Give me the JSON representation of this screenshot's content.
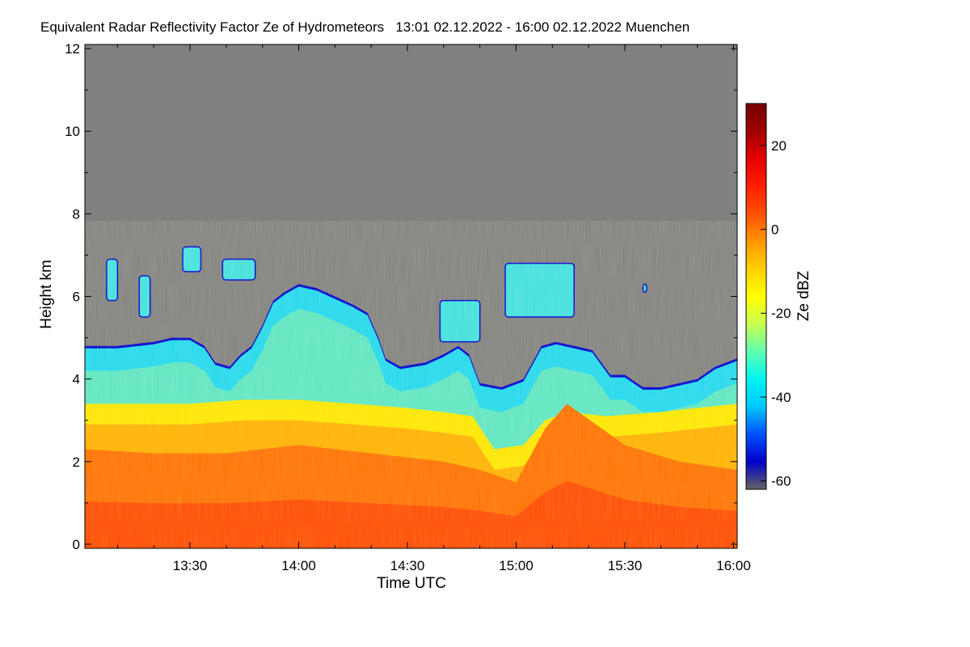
{
  "chart_data": {
    "type": "heatmap",
    "title": "Equivalent Radar Reflectivity Factor Ze of Hydrometeors   13:01 02.12.2022 - 16:00 02.12.2022 Muenchen",
    "xlabel": "Time UTC",
    "ylabel": "Height km",
    "x_ticks": [
      "13:30",
      "14:00",
      "14:30",
      "15:00",
      "15:30",
      "16:00"
    ],
    "x_tick_minutes": [
      30,
      60,
      90,
      120,
      150,
      180
    ],
    "x_range_minutes": [
      1,
      181
    ],
    "y_ticks": [
      "0",
      "2",
      "4",
      "6",
      "8",
      "10",
      "12"
    ],
    "y_range": [
      -0.1,
      12.1
    ],
    "no_data_color": "#808080",
    "colorbar": {
      "label": "Ze dBZ",
      "ticks": [
        "20",
        "0",
        "-20",
        "-40",
        "-60"
      ],
      "range": [
        -62,
        30
      ],
      "palette": [
        "#646464",
        "#0000c8",
        "#0050ff",
        "#00c8ff",
        "#00f5f0",
        "#60ffb0",
        "#c8ff50",
        "#ffff00",
        "#ffd000",
        "#ff9600",
        "#ff5000",
        "#ff1e00",
        "#e60000",
        "#a00000",
        "#780000"
      ]
    },
    "cloud_top_km": [
      {
        "t": 1,
        "h": 4.8
      },
      {
        "t": 10,
        "h": 4.8
      },
      {
        "t": 20,
        "h": 4.9
      },
      {
        "t": 25,
        "h": 5.0
      },
      {
        "t": 30,
        "h": 5.0
      },
      {
        "t": 34,
        "h": 4.8
      },
      {
        "t": 37,
        "h": 4.4
      },
      {
        "t": 41,
        "h": 4.3
      },
      {
        "t": 44,
        "h": 4.6
      },
      {
        "t": 47,
        "h": 4.8
      },
      {
        "t": 50,
        "h": 5.3
      },
      {
        "t": 53,
        "h": 5.9
      },
      {
        "t": 56,
        "h": 6.1
      },
      {
        "t": 60,
        "h": 6.3
      },
      {
        "t": 65,
        "h": 6.2
      },
      {
        "t": 70,
        "h": 6.0
      },
      {
        "t": 75,
        "h": 5.8
      },
      {
        "t": 79,
        "h": 5.6
      },
      {
        "t": 82,
        "h": 5.0
      },
      {
        "t": 84,
        "h": 4.5
      },
      {
        "t": 88,
        "h": 4.3
      },
      {
        "t": 95,
        "h": 4.4
      },
      {
        "t": 100,
        "h": 4.6
      },
      {
        "t": 104,
        "h": 4.8
      },
      {
        "t": 107,
        "h": 4.6
      },
      {
        "t": 110,
        "h": 3.9
      },
      {
        "t": 116,
        "h": 3.8
      },
      {
        "t": 122,
        "h": 4.0
      },
      {
        "t": 127,
        "h": 4.8
      },
      {
        "t": 131,
        "h": 4.9
      },
      {
        "t": 136,
        "h": 4.8
      },
      {
        "t": 141,
        "h": 4.7
      },
      {
        "t": 146,
        "h": 4.1
      },
      {
        "t": 150,
        "h": 4.1
      },
      {
        "t": 155,
        "h": 3.8
      },
      {
        "t": 160,
        "h": 3.8
      },
      {
        "t": 165,
        "h": 3.9
      },
      {
        "t": 170,
        "h": 4.0
      },
      {
        "t": 175,
        "h": 4.3
      },
      {
        "t": 181,
        "h": 4.5
      }
    ],
    "warm_layer_top_km": [
      {
        "t": 1,
        "h": 3.4
      },
      {
        "t": 15,
        "h": 3.4
      },
      {
        "t": 30,
        "h": 3.4
      },
      {
        "t": 45,
        "h": 3.5
      },
      {
        "t": 60,
        "h": 3.5
      },
      {
        "t": 75,
        "h": 3.4
      },
      {
        "t": 90,
        "h": 3.3
      },
      {
        "t": 100,
        "h": 3.2
      },
      {
        "t": 108,
        "h": 3.1
      },
      {
        "t": 114,
        "h": 2.3
      },
      {
        "t": 122,
        "h": 2.4
      },
      {
        "t": 128,
        "h": 3.0
      },
      {
        "t": 134,
        "h": 3.2
      },
      {
        "t": 145,
        "h": 3.1
      },
      {
        "t": 160,
        "h": 3.2
      },
      {
        "t": 170,
        "h": 3.3
      },
      {
        "t": 181,
        "h": 3.4
      }
    ],
    "core_top_km": [
      {
        "t": 1,
        "h": 2.3
      },
      {
        "t": 20,
        "h": 2.2
      },
      {
        "t": 40,
        "h": 2.2
      },
      {
        "t": 60,
        "h": 2.4
      },
      {
        "t": 80,
        "h": 2.2
      },
      {
        "t": 100,
        "h": 2.0
      },
      {
        "t": 110,
        "h": 1.8
      },
      {
        "t": 120,
        "h": 1.5
      },
      {
        "t": 128,
        "h": 2.8
      },
      {
        "t": 134,
        "h": 3.4
      },
      {
        "t": 150,
        "h": 2.4
      },
      {
        "t": 165,
        "h": 2.0
      },
      {
        "t": 181,
        "h": 1.8
      }
    ],
    "upper_cloud_patches": [
      {
        "t0": 7,
        "t1": 10,
        "h0": 5.9,
        "h1": 6.9
      },
      {
        "t0": 16,
        "t1": 19,
        "h0": 5.5,
        "h1": 6.5
      },
      {
        "t0": 28,
        "t1": 33,
        "h0": 6.6,
        "h1": 7.2
      },
      {
        "t0": 39,
        "t1": 48,
        "h0": 6.4,
        "h1": 6.9
      },
      {
        "t0": 99,
        "t1": 110,
        "h0": 4.9,
        "h1": 5.9
      },
      {
        "t0": 117,
        "t1": 136,
        "h0": 5.5,
        "h1": 6.8
      },
      {
        "t0": 155,
        "t1": 156,
        "h0": 6.1,
        "h1": 6.3
      }
    ]
  }
}
